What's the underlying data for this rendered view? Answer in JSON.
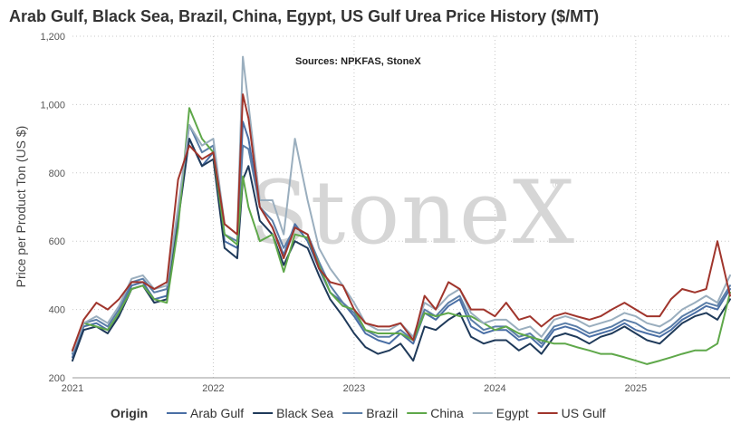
{
  "chart_data": {
    "type": "line",
    "title": "Arab Gulf, Black Sea, Brazil, China, Egypt, US Gulf Urea Price History ($/MT)",
    "subtitle": "Sources: NPKFAS, StoneX",
    "watermark": "StoneX",
    "ylabel": "Price per Product Ton (US $)",
    "xlabel": "",
    "ylim": [
      200,
      1200
    ],
    "yticks": [
      200,
      400,
      600,
      800,
      1000,
      1200
    ],
    "ytick_labels": [
      "200",
      "400",
      "600",
      "800",
      "1,000",
      "1,200"
    ],
    "xlim": [
      2021.0,
      2025.67
    ],
    "xticks": [
      2021,
      2022,
      2023,
      2024,
      2025
    ],
    "xtick_labels": [
      "2021",
      "2022",
      "2023",
      "2024",
      "2025"
    ],
    "grid": true,
    "legend": {
      "title": "Origin",
      "position": "bottom"
    },
    "x": [
      2021.0,
      2021.08,
      2021.17,
      2021.25,
      2021.33,
      2021.42,
      2021.5,
      2021.58,
      2021.67,
      2021.75,
      2021.83,
      2021.92,
      2022.0,
      2022.08,
      2022.17,
      2022.21,
      2022.25,
      2022.33,
      2022.42,
      2022.5,
      2022.58,
      2022.67,
      2022.75,
      2022.83,
      2022.92,
      2023.0,
      2023.08,
      2023.17,
      2023.25,
      2023.33,
      2023.42,
      2023.5,
      2023.58,
      2023.67,
      2023.75,
      2023.83,
      2023.92,
      2024.0,
      2024.08,
      2024.17,
      2024.25,
      2024.33,
      2024.42,
      2024.5,
      2024.58,
      2024.67,
      2024.75,
      2024.83,
      2024.92,
      2025.0,
      2025.08,
      2025.17,
      2025.25,
      2025.33,
      2025.42,
      2025.5,
      2025.58,
      2025.67
    ],
    "series": [
      {
        "name": "Arab Gulf",
        "color": "#4a6fa5",
        "values": [
          260,
          350,
          360,
          340,
          390,
          470,
          480,
          430,
          440,
          680,
          900,
          820,
          860,
          600,
          580,
          950,
          900,
          700,
          640,
          560,
          650,
          600,
          520,
          450,
          420,
          380,
          330,
          310,
          300,
          330,
          300,
          390,
          370,
          410,
          430,
          350,
          330,
          340,
          340,
          310,
          320,
          290,
          340,
          350,
          340,
          320,
          330,
          340,
          360,
          340,
          330,
          320,
          340,
          370,
          390,
          410,
          400,
          460
        ]
      },
      {
        "name": "Black Sea",
        "color": "#1f3a5a",
        "values": [
          250,
          340,
          350,
          330,
          380,
          460,
          470,
          420,
          430,
          660,
          900,
          820,
          840,
          580,
          550,
          780,
          820,
          660,
          620,
          530,
          600,
          580,
          500,
          430,
          380,
          330,
          290,
          270,
          280,
          300,
          250,
          350,
          340,
          370,
          390,
          320,
          300,
          310,
          310,
          280,
          300,
          270,
          320,
          330,
          320,
          300,
          320,
          330,
          350,
          330,
          310,
          300,
          330,
          360,
          380,
          390,
          370,
          430
        ]
      },
      {
        "name": "Brazil",
        "color": "#5b7ea8",
        "values": [
          270,
          360,
          370,
          350,
          400,
          480,
          490,
          450,
          460,
          690,
          940,
          860,
          880,
          620,
          600,
          880,
          870,
          700,
          660,
          580,
          640,
          620,
          540,
          470,
          420,
          390,
          340,
          320,
          320,
          340,
          310,
          400,
          380,
          420,
          440,
          370,
          340,
          350,
          350,
          320,
          330,
          300,
          350,
          360,
          350,
          330,
          340,
          350,
          370,
          360,
          340,
          330,
          350,
          380,
          400,
          420,
          410,
          470
        ]
      },
      {
        "name": "China",
        "color": "#5fa84a",
        "values": [
          280,
          360,
          350,
          340,
          390,
          460,
          470,
          430,
          420,
          640,
          990,
          900,
          860,
          620,
          590,
          790,
          700,
          600,
          620,
          510,
          620,
          610,
          530,
          450,
          410,
          400,
          340,
          330,
          330,
          330,
          310,
          390,
          380,
          390,
          380,
          380,
          360,
          340,
          350,
          330,
          320,
          310,
          300,
          300,
          290,
          280,
          270,
          270,
          260,
          250,
          240,
          250,
          260,
          270,
          280,
          280,
          300,
          450
        ]
      },
      {
        "name": "Egypt",
        "color": "#9aaebe",
        "values": [
          275,
          360,
          380,
          360,
          410,
          490,
          500,
          460,
          470,
          700,
          940,
          880,
          900,
          650,
          620,
          1140,
          1000,
          720,
          720,
          620,
          900,
          720,
          580,
          520,
          470,
          420,
          360,
          340,
          340,
          360,
          320,
          420,
          400,
          440,
          460,
          390,
          360,
          370,
          370,
          340,
          350,
          320,
          370,
          380,
          370,
          350,
          360,
          370,
          390,
          380,
          360,
          350,
          370,
          400,
          420,
          440,
          420,
          500
        ]
      },
      {
        "name": "US Gulf",
        "color": "#a0352c",
        "values": [
          280,
          370,
          420,
          400,
          430,
          480,
          480,
          460,
          480,
          780,
          880,
          840,
          860,
          650,
          620,
          1030,
          960,
          700,
          640,
          550,
          640,
          620,
          520,
          480,
          470,
          400,
          360,
          350,
          350,
          360,
          310,
          440,
          400,
          480,
          460,
          400,
          400,
          380,
          420,
          370,
          380,
          350,
          380,
          390,
          380,
          370,
          380,
          400,
          420,
          400,
          380,
          380,
          430,
          460,
          450,
          460,
          600,
          440
        ]
      }
    ]
  }
}
